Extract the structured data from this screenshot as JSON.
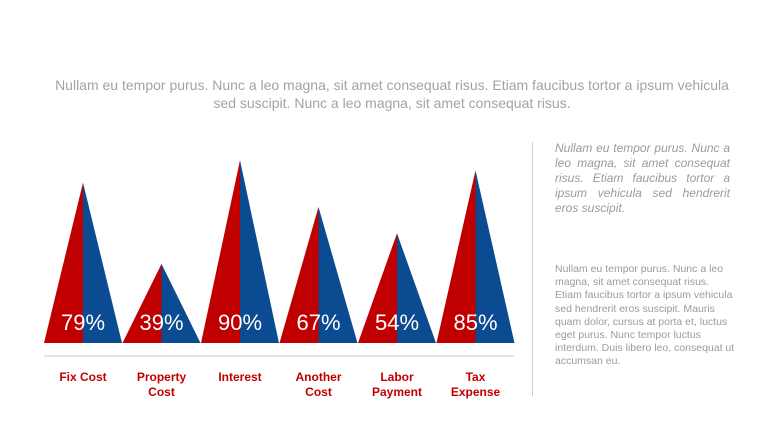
{
  "intro": "Nullam eu tempor purus. Nunc a leo magna, sit amet consequat risus. Etiam faucibus tortor a ipsum vehicula sed suscipit. Nunc a leo magna, sit amet consequat risus.",
  "side_italic": "Nullam eu tempor purus. Nunc a leo magna, sit amet consequat risus. Etiam faucibus tortor a ipsum vehicula sed hendrerit eros suscipit.",
  "side_body": "Nullam eu tempor purus. Nunc a leo magna, sit amet consequat risus. Etiam faucibus tortor a ipsum vehicula sed hendrerit eros suscipit. Mauris quam dolor, cursus at porta et, luctus eget purus. Nunc tempor luctus interdum. Duis libero leo, consequat ut accumsan eu.",
  "chart_data": {
    "type": "bar",
    "categories": [
      [
        "Fix Cost"
      ],
      [
        "Property",
        "Cost"
      ],
      [
        "Interest"
      ],
      [
        "Another",
        "Cost"
      ],
      [
        "Labor",
        "Payment"
      ],
      [
        "Tax",
        "Expense"
      ]
    ],
    "values": [
      79,
      39,
      90,
      67,
      54,
      85
    ],
    "value_labels": [
      "79%",
      "39%",
      "90%",
      "67%",
      "54%",
      "85%"
    ],
    "colors": {
      "left": "#c00000",
      "right": "#0b4b91",
      "category_text": "#c00000",
      "baseline": "#c8c8c8"
    },
    "ylim": [
      0,
      100
    ]
  }
}
